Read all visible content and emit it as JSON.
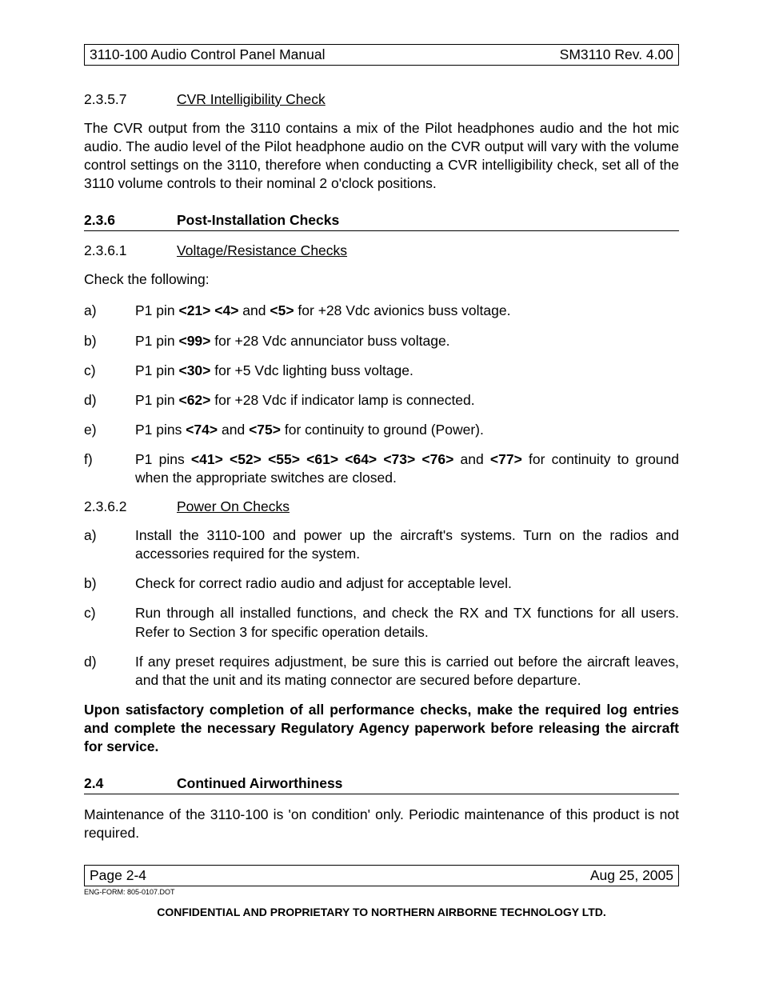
{
  "header": {
    "left": "3110-100 Audio Control Panel Manual",
    "right": "SM3110 Rev. 4.00"
  },
  "section_2357": {
    "num": "2.3.5.7",
    "title": "CVR Intelligibility Check",
    "para": "The CVR output from the 3110 contains a mix of the Pilot headphones audio and the hot mic audio. The audio level of the Pilot headphone audio on the CVR output will vary with the volume control settings on the 3110, therefore when conducting a CVR intelligibility check, set all of the 3110 volume controls to their nominal 2 o'clock positions."
  },
  "section_236": {
    "num": "2.3.6",
    "title": "Post-Installation Checks"
  },
  "section_2361": {
    "num": "2.3.6.1",
    "title": "Voltage/Resistance Checks",
    "intro": "Check the following:",
    "items": [
      {
        "l": "a)",
        "pre": "P1 pin ",
        "pins": "<21> <4>",
        "mid": " and ",
        "pins2": "<5>",
        "post": " for +28 Vdc avionics buss voltage."
      },
      {
        "l": "b)",
        "pre": "P1 pin ",
        "pins": "<99>",
        "mid": "",
        "pins2": "",
        "post": " for +28 Vdc annunciator buss voltage."
      },
      {
        "l": "c)",
        "pre": "P1 pin ",
        "pins": "<30>",
        "mid": "",
        "pins2": "",
        "post": " for +5 Vdc lighting buss voltage."
      },
      {
        "l": "d)",
        "pre": "P1 pin ",
        "pins": "<62>",
        "mid": "",
        "pins2": "",
        "post": " for +28 Vdc if indicator lamp is connected."
      },
      {
        "l": "e)",
        "pre": "P1 pins ",
        "pins": "<74>",
        "mid": " and ",
        "pins2": "<75>",
        "post": " for continuity to ground (Power)."
      },
      {
        "l": "f)",
        "pre": "P1 pins ",
        "pins": "<41> <52> <55> <61> <64> <73> <76>",
        "mid": " and ",
        "pins2": "<77>",
        "post": " for continuity to ground when the appropriate switches are closed."
      }
    ]
  },
  "section_2362": {
    "num": "2.3.6.2",
    "title": "Power On Checks",
    "items": [
      {
        "l": "a)",
        "t": "Install the 3110-100 and power up the aircraft's systems. Turn on the radios and accessories required for the system."
      },
      {
        "l": "b)",
        "t": "Check for correct radio audio and adjust for acceptable level."
      },
      {
        "l": "c)",
        "t": "Run through all installed functions, and check the RX and TX functions for all users.  Refer to Section 3 for specific operation details."
      },
      {
        "l": "d)",
        "t": "If any preset requires adjustment, be sure this is carried out before the aircraft leaves, and that the unit and its mating connector are secured before departure."
      }
    ]
  },
  "completion_note": "Upon satisfactory completion of all performance checks, make the required log entries and complete the necessary Regulatory Agency paperwork before releasing the aircraft for service.",
  "section_24": {
    "num": "2.4",
    "title": "Continued Airworthiness",
    "para": "Maintenance of the 3110-100 is 'on condition' only. Periodic maintenance of this product is not required."
  },
  "footer": {
    "left": "Page 2-4",
    "right": "Aug 25, 2005",
    "eng_form": "ENG-FORM: 805-0107.DOT",
    "confidential": "CONFIDENTIAL AND PROPRIETARY TO NORTHERN AIRBORNE TECHNOLOGY LTD."
  }
}
